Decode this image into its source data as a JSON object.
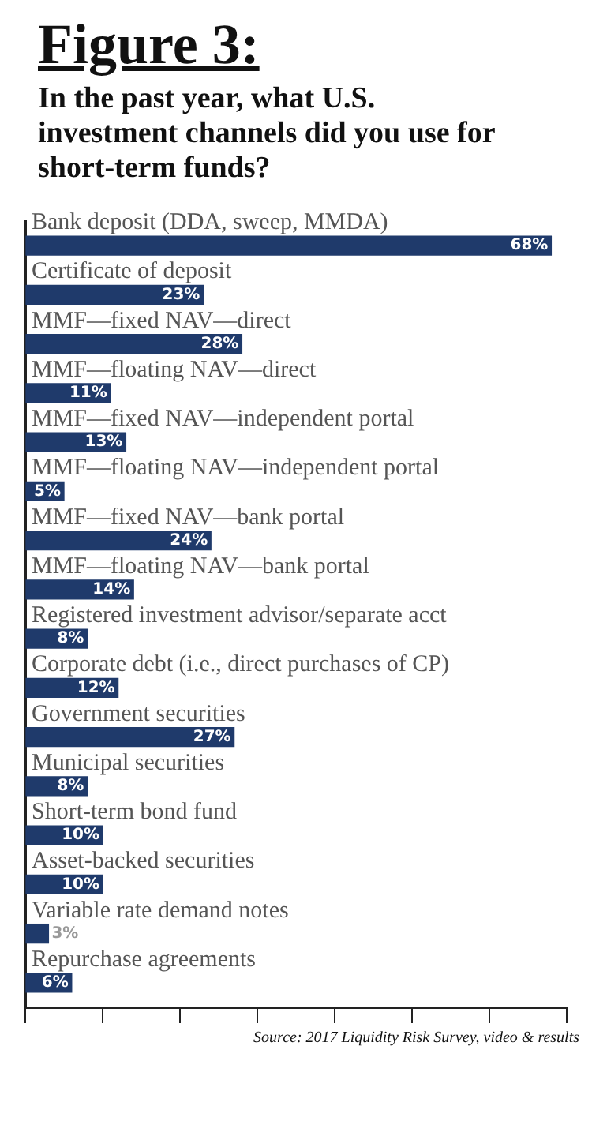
{
  "chart_data": {
    "type": "bar",
    "orientation": "horizontal",
    "title": "Figure 3:",
    "subtitle": "In the past year, what U.S. investment channels did you use for short-term funds?",
    "categories": [
      "Bank deposit (DDA, sweep, MMDA)",
      "Certificate of deposit",
      "MMF—fixed NAV—direct",
      "MMF—floating NAV—direct",
      "MMF—fixed NAV—independent portal",
      "MMF—floating NAV—independent portal",
      "MMF—fixed NAV—bank portal",
      "MMF—floating NAV—bank portal",
      "Registered investment advisor/separate acct",
      "Corporate debt (i.e., direct purchases of CP)",
      "Government securities",
      "Municipal securities",
      "Short-term bond fund",
      "Asset-backed securities",
      "Variable rate demand notes",
      "Repurchase agreements"
    ],
    "values": [
      68,
      23,
      28,
      11,
      13,
      5,
      24,
      14,
      8,
      12,
      27,
      8,
      10,
      10,
      3,
      6
    ],
    "value_labels": [
      "68%",
      "23%",
      "28%",
      "11%",
      "13%",
      "5%",
      "24%",
      "14%",
      "8%",
      "12%",
      "27%",
      "8%",
      "10%",
      "10%",
      "3%",
      "6%"
    ],
    "color": "#1f3a6b",
    "xlim": [
      0,
      70
    ],
    "xticks": [
      {
        "value": 0,
        "label": null
      },
      {
        "value": 10,
        "label": null
      },
      {
        "value": 20,
        "label": null
      },
      {
        "value": 30,
        "label": null
      },
      {
        "value": 40,
        "label": null
      },
      {
        "value": 50,
        "label": null
      },
      {
        "value": 60,
        "label": null
      },
      {
        "value": 70,
        "label": null
      }
    ],
    "tick_labels": "y",
    "legend": false,
    "annotations": [
      "Source: 2017 Liquidity Risk Survey, video & results"
    ]
  }
}
